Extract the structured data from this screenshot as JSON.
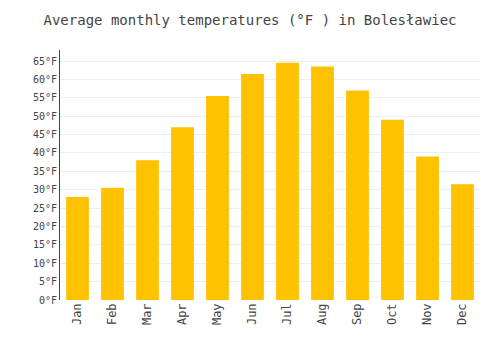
{
  "chart_data": {
    "type": "bar",
    "title": "Average monthly temperatures (°F ) in Bolesławiec",
    "categories": [
      "Jan",
      "Feb",
      "Mar",
      "Apr",
      "May",
      "Jun",
      "Jul",
      "Aug",
      "Sep",
      "Oct",
      "Nov",
      "Dec"
    ],
    "values": [
      28,
      30.5,
      38,
      47,
      55.5,
      61.5,
      64.5,
      63.5,
      57,
      49,
      39,
      31.5
    ],
    "color": "#FFC200",
    "ylim": [
      0,
      68
    ],
    "yticks": [
      {
        "value": 0,
        "label": "0°F"
      },
      {
        "value": 5,
        "label": "5°F"
      },
      {
        "value": 10,
        "label": "10°F"
      },
      {
        "value": 15,
        "label": "15°F"
      },
      {
        "value": 20,
        "label": "20°F"
      },
      {
        "value": 25,
        "label": "25°F"
      },
      {
        "value": 30,
        "label": "30°F"
      },
      {
        "value": 35,
        "label": "35°F"
      },
      {
        "value": 40,
        "label": "40°F"
      },
      {
        "value": 45,
        "label": "45°F"
      },
      {
        "value": 50,
        "label": "50°F"
      },
      {
        "value": 55,
        "label": "55°F"
      },
      {
        "value": 60,
        "label": "60°F"
      },
      {
        "value": 65,
        "label": "65°F"
      }
    ],
    "grid": true
  }
}
